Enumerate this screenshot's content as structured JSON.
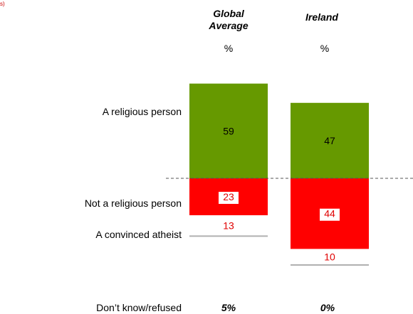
{
  "corner_fragment": "s)",
  "colors": {
    "religious": "#669900",
    "not_religious": "#ff0000",
    "atheist": "#ffffff",
    "divider": "#555555",
    "atheist_text": "#e00000"
  },
  "chart_data": {
    "type": "bar",
    "orientation": "diverging-stacked",
    "categories": [
      "Global Average",
      "Ireland"
    ],
    "unit_label": "%",
    "row_labels": {
      "religious": "A religious person",
      "not_religious": "Not a religious person",
      "atheist": "A convinced atheist",
      "dont_know": "Don’t know/refused"
    },
    "series": [
      {
        "name": "A religious person",
        "values": [
          59,
          47
        ]
      },
      {
        "name": "Not a religious person",
        "values": [
          23,
          44
        ]
      },
      {
        "name": "A convinced atheist",
        "values": [
          13,
          10
        ]
      }
    ],
    "dont_know": [
      "5%",
      "0%"
    ]
  }
}
